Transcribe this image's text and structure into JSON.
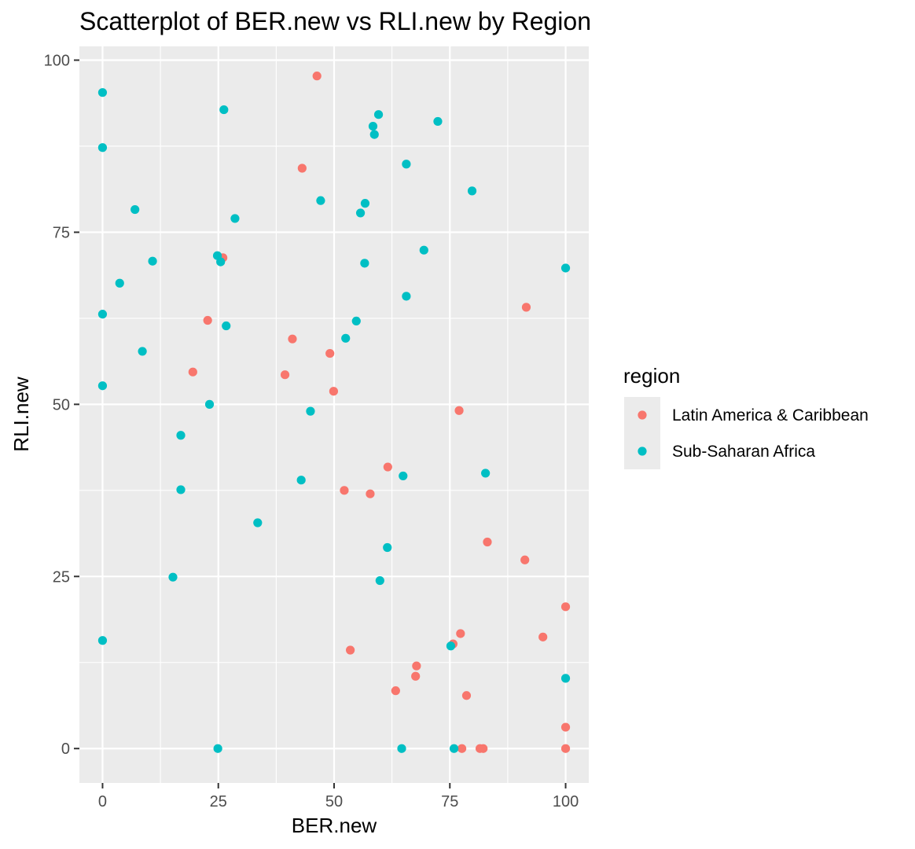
{
  "chart_data": {
    "type": "scatter",
    "title": "Scatterplot of BER.new vs RLI.new by Region",
    "xlabel": "BER.new",
    "ylabel": "RLI.new",
    "xlim": [
      -5,
      105
    ],
    "ylim": [
      -5,
      102
    ],
    "x_ticks": [
      0,
      25,
      50,
      75,
      100
    ],
    "y_ticks": [
      0,
      25,
      50,
      75,
      100
    ],
    "x_tick_labels": [
      "0",
      "25",
      "50",
      "75",
      "100"
    ],
    "y_tick_labels": [
      "0",
      "25",
      "50",
      "75",
      "100"
    ],
    "grid": true,
    "legend": {
      "title": "region",
      "position": "right"
    },
    "series": [
      {
        "name": "Latin America & Caribbean",
        "color": "#f8766d",
        "points": [
          [
            46.3,
            97.7
          ],
          [
            43.1,
            84.3
          ],
          [
            26.0,
            71.3
          ],
          [
            22.7,
            62.2
          ],
          [
            41.0,
            59.5
          ],
          [
            49.1,
            57.4
          ],
          [
            19.5,
            54.7
          ],
          [
            39.4,
            54.3
          ],
          [
            49.9,
            51.9
          ],
          [
            77.0,
            49.1
          ],
          [
            91.5,
            64.1
          ],
          [
            61.6,
            40.9
          ],
          [
            52.2,
            37.5
          ],
          [
            57.8,
            37.0
          ],
          [
            83.1,
            30.0
          ],
          [
            91.2,
            27.4
          ],
          [
            100.0,
            20.6
          ],
          [
            95.1,
            16.2
          ],
          [
            77.3,
            16.7
          ],
          [
            75.7,
            15.2
          ],
          [
            53.5,
            14.3
          ],
          [
            67.8,
            12.0
          ],
          [
            67.6,
            10.5
          ],
          [
            63.3,
            8.4
          ],
          [
            78.6,
            7.7
          ],
          [
            100.0,
            3.1
          ],
          [
            77.6,
            0.0
          ],
          [
            81.5,
            0.0
          ],
          [
            82.2,
            0.0
          ],
          [
            100.0,
            0.0
          ]
        ]
      },
      {
        "name": "Sub-Saharan Africa",
        "color": "#00bfc4",
        "points": [
          [
            0.0,
            95.3
          ],
          [
            0.0,
            87.3
          ],
          [
            0.0,
            63.1
          ],
          [
            0.0,
            52.7
          ],
          [
            0.0,
            15.7
          ],
          [
            7.0,
            78.3
          ],
          [
            10.8,
            70.8
          ],
          [
            3.7,
            67.6
          ],
          [
            8.6,
            57.7
          ],
          [
            16.9,
            45.5
          ],
          [
            16.9,
            37.6
          ],
          [
            15.2,
            24.9
          ],
          [
            24.8,
            71.6
          ],
          [
            25.5,
            70.7
          ],
          [
            26.2,
            92.8
          ],
          [
            26.7,
            61.4
          ],
          [
            28.6,
            77.0
          ],
          [
            23.1,
            50.0
          ],
          [
            33.5,
            32.8
          ],
          [
            47.1,
            79.6
          ],
          [
            44.9,
            49.0
          ],
          [
            42.9,
            39.0
          ],
          [
            58.4,
            90.4
          ],
          [
            59.6,
            92.1
          ],
          [
            58.7,
            89.2
          ],
          [
            56.7,
            79.2
          ],
          [
            55.7,
            77.8
          ],
          [
            56.6,
            70.5
          ],
          [
            54.8,
            62.1
          ],
          [
            52.5,
            59.6
          ],
          [
            72.4,
            91.1
          ],
          [
            65.6,
            84.9
          ],
          [
            69.4,
            72.4
          ],
          [
            65.6,
            65.7
          ],
          [
            79.8,
            81.0
          ],
          [
            100.0,
            69.8
          ],
          [
            64.9,
            39.6
          ],
          [
            82.7,
            40.0
          ],
          [
            61.5,
            29.2
          ],
          [
            59.9,
            24.4
          ],
          [
            75.2,
            14.9
          ],
          [
            100.0,
            10.2
          ],
          [
            24.9,
            0.0
          ],
          [
            64.6,
            0.0
          ],
          [
            75.9,
            0.0
          ]
        ]
      }
    ]
  }
}
